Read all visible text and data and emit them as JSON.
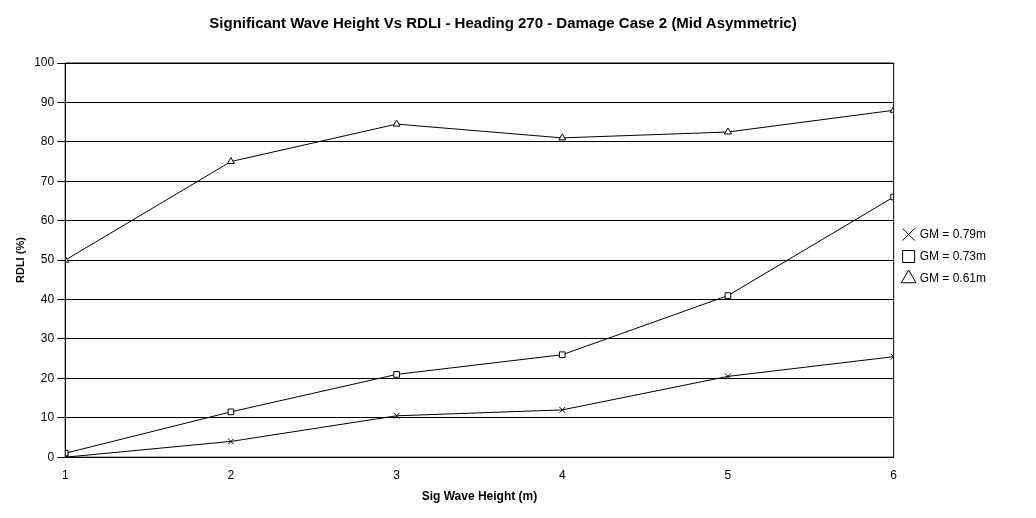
{
  "chart_data": {
    "type": "line",
    "title": "Significant Wave Height Vs RDLI - Heading 270 - Damage Case 2 (Mid Asymmetric)",
    "xlabel": "Sig Wave Height (m)",
    "ylabel": "RDLI (%)",
    "x": [
      1,
      2,
      3,
      4,
      5,
      6
    ],
    "series": [
      {
        "name": "GM = 0.79m",
        "color": "#000000",
        "marker": "cross",
        "values": [
          0,
          4,
          10.5,
          12,
          20.5,
          25.5
        ]
      },
      {
        "name": "GM = 0.73m",
        "color": "#000000",
        "marker": "square",
        "values": [
          1,
          11.5,
          21,
          26,
          41,
          66
        ]
      },
      {
        "name": "GM = 0.61m",
        "color": "#000000",
        "marker": "triangle",
        "values": [
          50,
          75,
          84.5,
          81,
          82.5,
          88
        ]
      }
    ],
    "xlim": [
      1,
      6
    ],
    "xticks": [
      1,
      2,
      3,
      4,
      5,
      6
    ],
    "ylim": [
      0,
      100
    ],
    "yticks": [
      0,
      10,
      20,
      30,
      40,
      50,
      60,
      70,
      80,
      90,
      100
    ],
    "grid": "y",
    "legend": "right",
    "line_style": "solid"
  }
}
